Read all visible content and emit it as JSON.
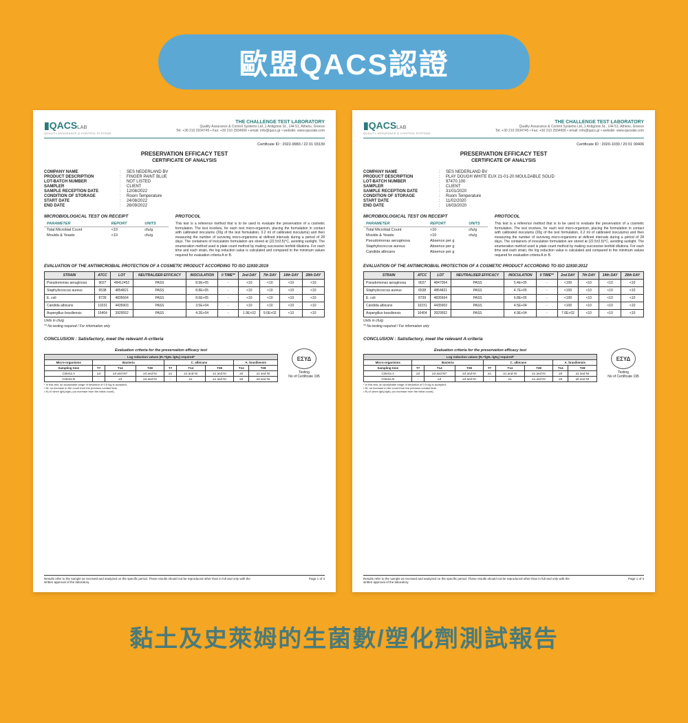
{
  "banner": "歐盟QACS認證",
  "caption": "黏土及史萊姆的生菌數/塑化劑測試報告",
  "lab": {
    "logo_main": "QACS",
    "logo_lab": "LAB",
    "logo_sub": "QUALITY ASSURANCE & CONTROL SYSTEMS",
    "title": "THE CHALLENGE TEST LABORATORY",
    "addr1": "Quality Assurance & Control Systems Ltd.,1 Antigonis St., 144 51, Athens, Greece",
    "addr2": "Tel: +30 210 2934745 • Fax: +30 210 2934606 • email: info@qacs.gr • website: www.qacslab.com"
  },
  "titles": {
    "main": "PRESERVATION EFFICACY TEST",
    "sub": "CERTIFICATE OF ANALYSIS",
    "micro_hdr": "MICROBIOLOGICAL TEST ON RECEIPT",
    "protocol_hdr": "PROTOCOL",
    "crit_title": "Evaluation criteria for the preservation efficacy test",
    "crit_sub": "Log reduction values (R₀=lgN₀-lgNₓ) required*",
    "esyd_text": "Testing",
    "esyd_cert": "No of Certificate 195",
    "footer_left": "Results refer to the sample as received and analyzed on the specific period. These results should not be reproduced other than in full and only with the written approval of the laboratory.",
    "footer_right": "Page 1 of 3"
  },
  "cert1": {
    "cert_id": "Certificate ID :   2022-9983 / 22 01 03139",
    "info": [
      [
        "COMPANY NAME",
        "SES NEDERLAND BV"
      ],
      [
        "PRODUCT DESCRIPTION",
        "FINGER PAINT BLUE"
      ],
      [
        "LOT-BATCH NUMBER",
        "NOT LISTED"
      ],
      [
        "SAMPLER",
        "CLIENT"
      ],
      [
        "SAMPLE RECEPTION DATE",
        "12/08/2022"
      ],
      [
        "CONDITION OF STORAGE",
        "Room Temperature"
      ],
      [
        "START DATE",
        "24/08/2022"
      ],
      [
        "END DATE",
        "26/09/2022"
      ]
    ],
    "micro_hdrs": [
      "PARAMETER",
      "REPORT",
      "UNITS"
    ],
    "micro": [
      [
        "Total Microbial Count",
        "<10",
        "cfu/g"
      ],
      [
        "Moulds & Yeasts",
        "<10",
        "cfu/g"
      ]
    ],
    "protocol": "This test is a reference method that is to be used to evaluate the preservation of a cosmetic formulation. The test involves, for each test micro-organism, placing the formulation in contact with calibrated inoculums (20g of the test formulation, 0.2 ml of calibrated inoculums) and then measuring the number of surviving micro-organisms at defined intervals during a period of 28 days. The containers of inoculation formulation are stored at (22.5±2.5)°C, avoiding sunlight. The enumeration method used is plate count method by making successive tenfold dilutions. For each time and each strain, the log reduction value is calculated and compared to the minimum values required for evaluation criteria A or B.",
    "eval_hdr": "EVALUATION OF THE ANTIMICROBIAL PROTECTION OF A COSMETIC PRODUCT ACCORDING TO ISO 11930:2019",
    "eval_cols": [
      "STRAIN",
      "ATCC",
      "LOT",
      "NEUTRALISER EFFICACY",
      "INOCULATION",
      "0 TIME**",
      "2nd DAY",
      "7th DAY",
      "14th DAY",
      "28th DAY"
    ],
    "eval_rows": [
      [
        "Pseudomonas aeruginosa",
        "9027",
        "48412452",
        "PASS",
        "8.9E+05",
        "-",
        "<10",
        "<10",
        "<10",
        "<10"
      ],
      [
        "Staphylococcus aureus",
        "6538",
        "4854821",
        "PASS",
        "8.8E+05",
        "-",
        "<10",
        "<10",
        "<10",
        "<10"
      ],
      [
        "E. coli",
        "8739",
        "4835664",
        "PASS",
        "8.6E+05",
        "-",
        "<10",
        "<10",
        "<10",
        "<10"
      ],
      [
        "Candida albicans",
        "10231",
        "4435903",
        "PASS",
        "3.5E+04",
        "-",
        "<10",
        "<10",
        "<10",
        "<10"
      ],
      [
        "Aspergillus brasiliensis",
        "16404",
        "3929552",
        "PASS",
        "4.2E+04",
        "-",
        "1.9E+02",
        "9.0E+02",
        "<10",
        "<10"
      ]
    ],
    "units_note1": "Units in cfu/g",
    "units_note2": "** No testing required / For information only",
    "conclusion": "CONCLUSION :  Satisfactory, meet the relevant A-criteria"
  },
  "cert2": {
    "cert_id": "Certificate ID :   2020-1030 / 20 01 00406",
    "info": [
      [
        "COMPANY NAME",
        "SES NEDERLAND BV"
      ],
      [
        "PRODUCT DESCRIPTION",
        "PLAY DOUGH WHITE EUX 21-01-20 MOULDABLE SOLID"
      ],
      [
        "LOT-BATCH NUMBER",
        "97470.100"
      ],
      [
        "SAMPLER",
        "CLIENT"
      ],
      [
        "SAMPLE RECEPTION DATE",
        "31/01/2020"
      ],
      [
        "CONDITION OF STORAGE",
        "Room Temperature"
      ],
      [
        "START DATE",
        "11/02/2020"
      ],
      [
        "END DATE",
        "16/03/2020"
      ]
    ],
    "micro_hdrs": [
      "PARAMETER",
      "REPORT",
      "UNITS"
    ],
    "micro": [
      [
        "Total Microbial Count",
        "<10",
        "cfu/g"
      ],
      [
        "Moulds & Yeasts",
        "<10",
        "cfu/g"
      ],
      [
        "Pseudomonas aeruginosa",
        "Absence per g",
        ""
      ],
      [
        "Staphylococcus aureus",
        "Absence per g",
        ""
      ],
      [
        "Candida albicans",
        "Absence per g",
        ""
      ]
    ],
    "protocol": "This test is a reference method that is to be used to evaluate the preservation of a cosmetic formulation. The test involves, for each test micro-organism, placing the formulation in contact with calibrated inoculums (20g of the test formulation, 0.2 ml of calibrated inoculums) and then measuring the number of surviving micro-organisms at defined intervals during a period of 28 days. The containers of inoculation formulation are stored at (22.5±2.5)°C, avoiding sunlight. The enumeration method used is plate count method by making successive tenfold dilutions. For each time and each strain, the log reduction value is calculated and compared to the minimum values required for evaluation criteria A or B.",
    "eval_hdr": "EVALUATION OF THE ANTIMICROBIAL PROTECTION OF A COSMETIC PRODUCT ACCORDING TO ISO 11930:2012",
    "eval_cols": [
      "STRAIN",
      "ATCC",
      "LOT",
      "NEUTRALISER EFFICACY",
      "INOCULATION",
      "0 TIME**",
      "2nd DAY",
      "7th DAY",
      "14th DAY",
      "28th DAY"
    ],
    "eval_rows": [
      [
        "Pseudomonas aeruginosa",
        "9027",
        "4847054",
        "PASS",
        "5.4E+05",
        "-",
        "<100",
        "<10",
        "<10",
        "<10"
      ],
      [
        "Staphylococcus aureus",
        "6538",
        "4854821",
        "PASS",
        "4.7E+05",
        "-",
        "<100",
        "<10",
        "<10",
        "<10"
      ],
      [
        "E. coli",
        "8739",
        "4835664",
        "PASS",
        "6.8E+05",
        "-",
        "<100",
        "<10",
        "<10",
        "<10"
      ],
      [
        "Candida albicans",
        "10231",
        "4435903",
        "PASS",
        "4.5E+04",
        "-",
        "<100",
        "<10",
        "<10",
        "<10"
      ],
      [
        "Aspergillus brasiliensis",
        "16404",
        "3929552",
        "PASS",
        "4.9E+04",
        "-",
        "7.6E+02",
        "<10",
        "<10",
        "<10"
      ]
    ],
    "units_note1": "Units in cfu/g",
    "units_note2": "** No testing required / For information only",
    "conclusion": "CONCLUSION :  Satisfactory, meet the relevant A-criteria"
  },
  "crit": {
    "hdrs_top": [
      "Micro-organisms",
      "Bacteria",
      "C. albicans",
      "A. brasiliensis"
    ],
    "hdrs_sub": [
      "Sampling time",
      "T7",
      "T14",
      "T28",
      "T7",
      "T14",
      "T28",
      "T14",
      "T28"
    ],
    "rows": [
      [
        "Criteria A",
        "≥3",
        "≥3 and NI*",
        "≥3 and NI",
        "≥1",
        "≥1 and NI",
        "≥1 and NI",
        "≥0",
        "≥1 and NI"
      ],
      [
        "Criteria B",
        "-",
        "≥3",
        "≥3 and NI",
        "-",
        "≥1",
        "≥1 and NI",
        "≥0",
        "≥0 and NI"
      ]
    ],
    "note": "* In this test, an acceptable range of deviation of 0.5 log is accepted.\n• NI: no increase in the count from the previous contact time.\n• Rₓ=0 when lgNₓ≥lgN₀ (no increase from the initial count)."
  }
}
